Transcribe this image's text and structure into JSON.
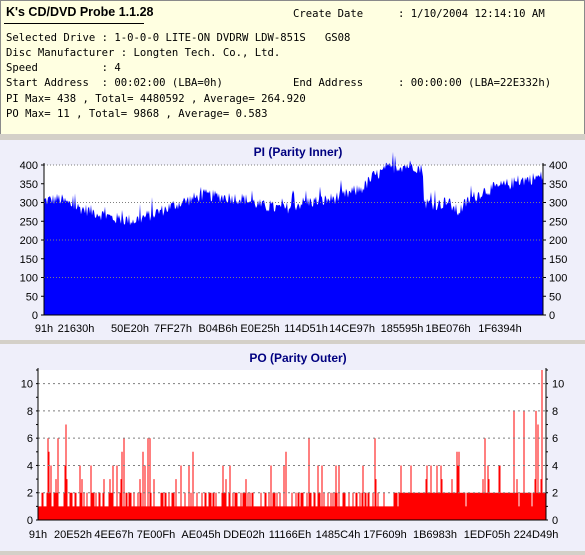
{
  "app": {
    "title": "K's CD/DVD Probe 1.1.28"
  },
  "info": {
    "create_date_label": "Create Date",
    "create_date_value": ": 1/10/2004 12:14:10 AM",
    "selected_drive": "Selected Drive : 1-0-0-0 LITE-ON DVDRW LDW-851S   GS08",
    "disc_manufacturer": "Disc Manufacturer : Longten Tech. Co., Ltd.",
    "speed": "Speed          : 4",
    "start_address": "Start Address  : 00:02:00 (LBA=0h)",
    "end_address_label": "End Address",
    "end_address_value": ": 00:00:00 (LBA=22E332h)",
    "pi_stats": "PI Max= 438 , Total= 4480592 , Average= 264.920",
    "po_stats": "PO Max= 11 , Total= 9868 , Average= 0.583"
  },
  "colors": {
    "pi": "#0000ff",
    "po": "#ff0000",
    "title": "#000080",
    "panel_bg": "#efeffa",
    "info_bg": "#ffffe1"
  },
  "chart_data": [
    {
      "type": "area",
      "title": "PI (Parity Inner)",
      "ylim": [
        0,
        400
      ],
      "yticks": [
        0,
        50,
        100,
        150,
        200,
        250,
        300,
        350,
        400
      ],
      "x_tick_labels": [
        "91h",
        "21630h",
        "50E20h",
        "7FF27h",
        "B04B6h",
        "E0E25h",
        "114D51h",
        "14CE97h",
        "185595h",
        "1BE076h",
        "1F6394h"
      ],
      "grid": "dotted horizontal at 100, 200, 300, 400",
      "profile_x": [
        0,
        0.03,
        0.06,
        0.1,
        0.14,
        0.18,
        0.22,
        0.27,
        0.32,
        0.36,
        0.4,
        0.44,
        0.48,
        0.52,
        0.56,
        0.6,
        0.64,
        0.66,
        0.7,
        0.74,
        0.76,
        0.7601,
        0.79,
        0.81,
        0.83,
        0.85,
        0.88,
        0.92,
        0.96,
        1.0
      ],
      "profile_y": [
        305,
        310,
        290,
        275,
        258,
        252,
        270,
        298,
        320,
        315,
        310,
        290,
        283,
        300,
        305,
        318,
        340,
        370,
        395,
        400,
        385,
        300,
        295,
        300,
        275,
        305,
        330,
        345,
        360,
        370
      ]
    },
    {
      "type": "bar",
      "title": "PO (Parity Outer)",
      "ylim": [
        0,
        11
      ],
      "yticks": [
        0,
        2,
        4,
        6,
        8,
        10
      ],
      "x_tick_labels": [
        "91h",
        "20E52h",
        "4EE67h",
        "7E00Fh",
        "AE045h",
        "DDE02h",
        "11166Eh",
        "1485C4h",
        "17F609h",
        "1B6983h",
        "1EDF05h",
        "224D49h"
      ],
      "grid": "dashed horizontal at 2, 4, 6, 8, 10",
      "max": 11
    }
  ]
}
